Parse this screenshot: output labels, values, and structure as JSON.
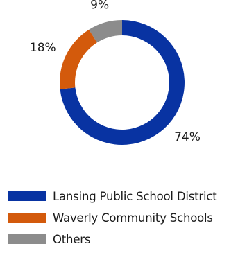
{
  "chart_data": {
    "type": "pie",
    "variant": "donut",
    "title": "",
    "categories": [
      "Lansing Public School District",
      "Waverly Community Schools",
      "Others"
    ],
    "values": [
      74,
      18,
      9
    ],
    "value_labels": [
      "74%",
      "18%",
      "9%"
    ],
    "colors": [
      "#0833a2",
      "#d35a0c",
      "#8c8c8c"
    ],
    "legend_position": "bottom",
    "start_angle_deg": 0,
    "direction": "clockwise"
  },
  "legend": {
    "items": [
      {
        "label": "Lansing Public School District",
        "color": "#0833a2"
      },
      {
        "label": "Waverly Community Schools",
        "color": "#d35a0c"
      },
      {
        "label": "Others",
        "color": "#8c8c8c"
      }
    ]
  }
}
